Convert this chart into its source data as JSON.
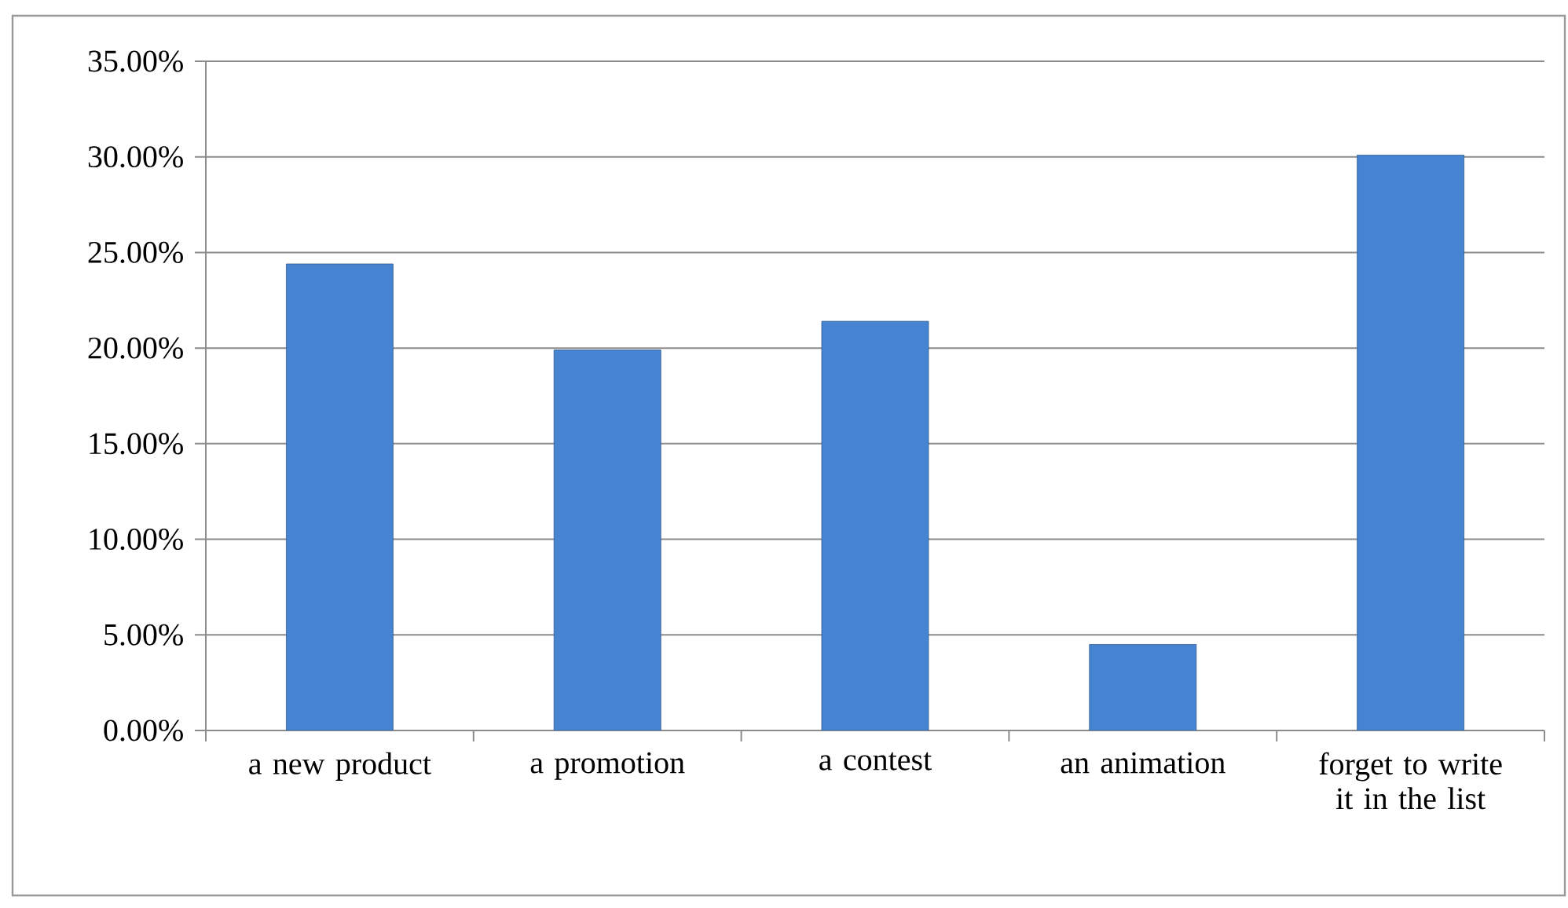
{
  "chart_data": {
    "type": "bar",
    "categories": [
      "a new product",
      "a promotion",
      "a contest",
      "an animation",
      "forget to write it in the list"
    ],
    "values": [
      24.4,
      19.9,
      21.4,
      4.5,
      30.1
    ],
    "color": "#4683d0",
    "ylim": [
      0,
      35
    ],
    "yticks": [
      {
        "value": 0,
        "label": "0.00%"
      },
      {
        "value": 5,
        "label": "5.00%"
      },
      {
        "value": 10,
        "label": "10.00%"
      },
      {
        "value": 15,
        "label": "15.00%"
      },
      {
        "value": 20,
        "label": "20.00%"
      },
      {
        "value": 25,
        "label": "25.00%"
      },
      {
        "value": 30,
        "label": "30.00%"
      },
      {
        "value": 35,
        "label": "35.00%"
      }
    ],
    "grid": "y"
  }
}
